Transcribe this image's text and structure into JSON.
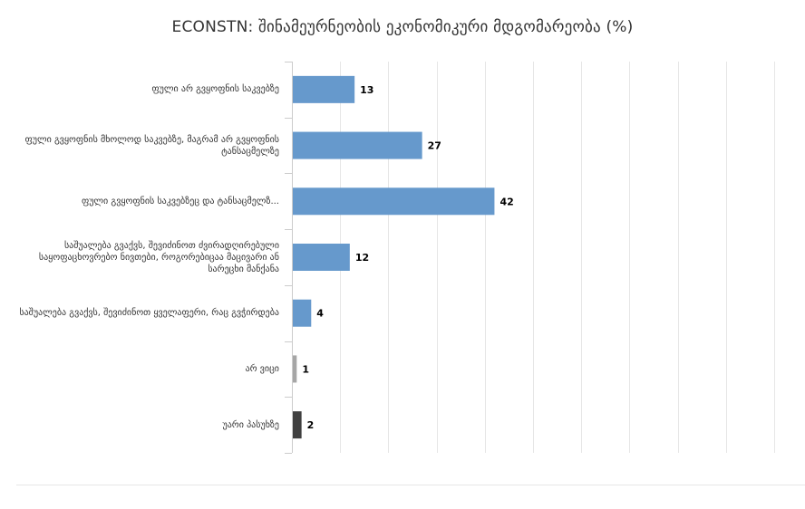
{
  "chart_data": {
    "type": "bar",
    "orientation": "horizontal",
    "title": "ECONSTN: შინამეურნეობის ეკონომიკური მდგომარეობა (%)",
    "xlim": [
      0,
      100
    ],
    "grid": true,
    "data_labels": true,
    "categories": [
      "ფული არ გვყოფნის საკვებზე",
      "ფული გვყოფნის მხოლოდ საკვებზე, მაგრამ არ გვყოფნის ტანსაცმელზე",
      "ფული გვყოფნის საკვებზეც და ტანსაცმელზ...",
      "საშუალება გვაქვს, შევიძინოთ ძვირადღირებული საყოფაცხოვრებო ნივთები, როგორებიცაა მაცივარი ან სარეცხი მანქანა",
      "საშუალება გვაქვს, შევიძინოთ ყველაფერი, რაც გვჭირდება",
      "არ ვიცი",
      "უარი პასუხზე"
    ],
    "values": [
      13,
      27,
      42,
      12,
      4,
      1,
      2
    ],
    "colors": [
      "#6699cc",
      "#6699cc",
      "#6699cc",
      "#6699cc",
      "#6699cc",
      "#a6a6a6",
      "#404040"
    ]
  }
}
